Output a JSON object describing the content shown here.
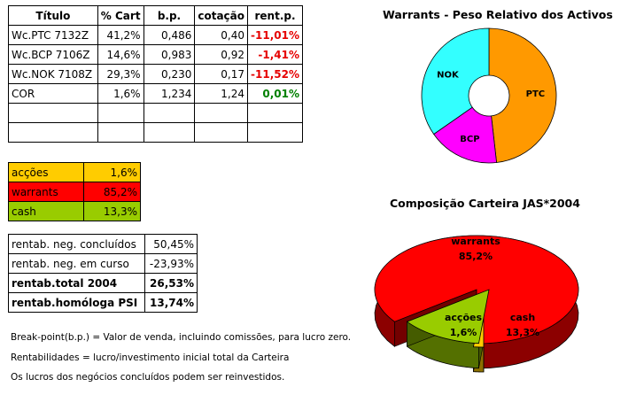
{
  "main_table": {
    "headers": [
      "Título",
      "% Cart",
      "b.p.",
      "cotação",
      "rent.p."
    ],
    "rows": [
      {
        "title": "Wc.PTC 7132Z",
        "cart": "41,2%",
        "bp": "0,486",
        "quote": "0,40",
        "rent": "-11,01%"
      },
      {
        "title": "Wc.BCP 7106Z",
        "cart": "14,6%",
        "bp": "0,983",
        "quote": "0,92",
        "rent": "-1,41%"
      },
      {
        "title": "Wc.NOK 7108Z",
        "cart": "29,3%",
        "bp": "0,230",
        "quote": "0,17",
        "rent": "-11,52%"
      },
      {
        "title": "COR",
        "cart": "1,6%",
        "bp": "1,234",
        "quote": "1,24",
        "rent": "0,01%"
      }
    ]
  },
  "allocation": [
    {
      "label": "acções",
      "value": "1,6%",
      "color": "#ffcc00"
    },
    {
      "label": "warrants",
      "value": "85,2%",
      "color": "#ff0000"
    },
    {
      "label": "cash",
      "value": "13,3%",
      "color": "#99cc00"
    }
  ],
  "returns": [
    {
      "label": "rentab. neg. concluídos",
      "value": "50,45%"
    },
    {
      "label": "rentab. neg. em curso",
      "value": "-23,93%"
    },
    {
      "label": "rentab.total 2004",
      "value": "26,53%"
    },
    {
      "label": "rentab.homóloga PSI",
      "value": "13,74%"
    }
  ],
  "notes": [
    "Break-point(b.p.) = Valor de venda, incluindo comissões, para lucro zero.",
    "Rentabilidades = lucro/investimento inicial total da Carteira",
    "Os lucros dos negócios concluídos podem ser reinvestidos."
  ],
  "chart_data": [
    {
      "type": "pie",
      "title": "Warrants - Peso Relativo dos Activos",
      "labels": [
        "PTC",
        "BCP",
        "NOK"
      ],
      "values": [
        48.2,
        17.1,
        34.7
      ],
      "colors": [
        "#ff9900",
        "#ff00ff",
        "#33ffff"
      ]
    },
    {
      "type": "pie",
      "title": "Composição Carteira JAS*2004",
      "labels": [
        "warrants",
        "acções",
        "cash"
      ],
      "values": [
        85.2,
        1.6,
        13.3
      ],
      "value_labels": [
        "85,2%",
        "1,6%",
        "13,3%"
      ],
      "colors": [
        "#ff0000",
        "#ffcc00",
        "#99cc00"
      ]
    }
  ]
}
